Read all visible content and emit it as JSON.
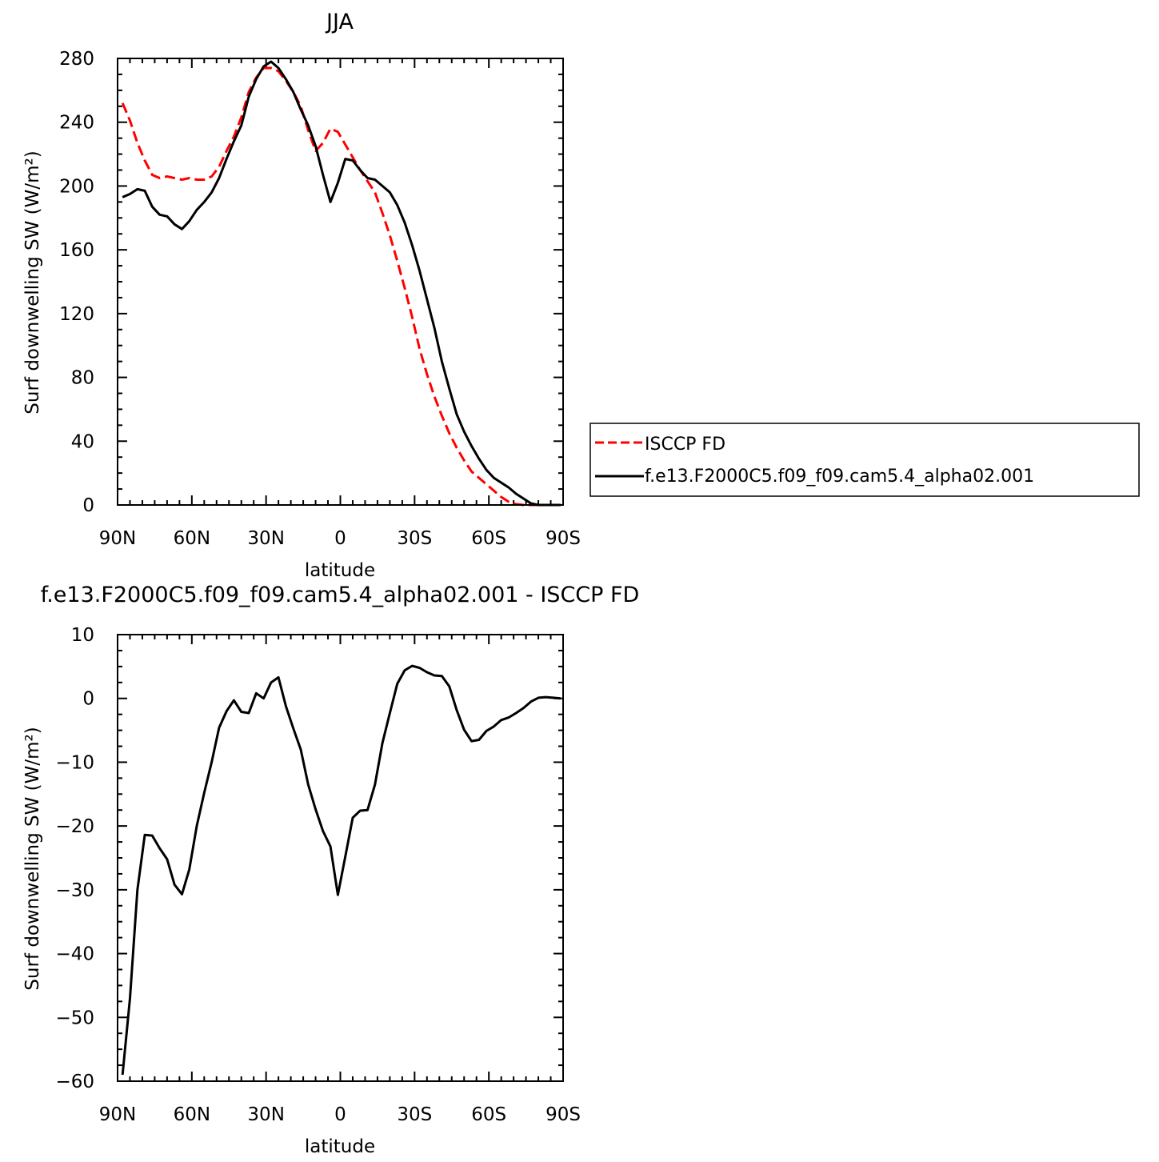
{
  "chart_data": [
    {
      "type": "line",
      "title": "JJA",
      "xlabel": "latitude",
      "ylabel": "Surf downwelling SW (W/m²)",
      "xlim": [
        90,
        -90
      ],
      "ylim": [
        0,
        280
      ],
      "xticks": [
        90,
        60,
        30,
        0,
        -30,
        -60,
        -90
      ],
      "xticklabels": [
        "90N",
        "60N",
        "30N",
        "0",
        "30S",
        "60S",
        "90S"
      ],
      "yticks": [
        0,
        40,
        80,
        120,
        160,
        200,
        240,
        280
      ],
      "yticklabels": [
        "0",
        "40",
        "80",
        "120",
        "160",
        "200",
        "240",
        "280"
      ],
      "legend_position": "right",
      "series": [
        {
          "name": "ISCCP FD",
          "color": "#ff0000",
          "style": "dashed",
          "x": [
            88,
            85,
            82,
            79,
            76,
            73,
            70,
            67,
            64,
            61,
            58,
            55,
            52,
            49,
            46,
            43,
            40,
            37,
            34,
            31,
            28,
            25,
            22,
            19,
            16,
            13,
            10,
            7,
            4,
            1,
            -2,
            -5,
            -8,
            -11,
            -14,
            -17,
            -20,
            -23,
            -26,
            -29,
            -32,
            -35,
            -38,
            -41,
            -44,
            -47,
            -50,
            -53,
            -56,
            -59,
            -62,
            -65,
            -68,
            -71,
            -74,
            -77,
            -80,
            -83,
            -86,
            -89
          ],
          "y": [
            252,
            241,
            227,
            216,
            207,
            205,
            206,
            205,
            204,
            205,
            204,
            204,
            206,
            212,
            222,
            231,
            243,
            259,
            268,
            274,
            274,
            272,
            266,
            259,
            250,
            235,
            222,
            227,
            236,
            234,
            226,
            218,
            210,
            203,
            196,
            183,
            169,
            153,
            136,
            118,
            98,
            82,
            68,
            56,
            45,
            36,
            28,
            21,
            17,
            13,
            9,
            5,
            2,
            0.5,
            0,
            0,
            0,
            0,
            0,
            0
          ]
        },
        {
          "name": "f.e13.F2000C5.f09_f09.cam5.4_alpha02.001",
          "color": "#000000",
          "style": "solid",
          "x": [
            88,
            85,
            82,
            79,
            76,
            73,
            70,
            67,
            64,
            61,
            58,
            55,
            52,
            49,
            46,
            43,
            40,
            37,
            34,
            31,
            28,
            25,
            22,
            19,
            16,
            13,
            10,
            7,
            4,
            1,
            -2,
            -5,
            -8,
            -11,
            -14,
            -17,
            -20,
            -23,
            -26,
            -29,
            -32,
            -35,
            -38,
            -41,
            -44,
            -47,
            -50,
            -53,
            -56,
            -59,
            -62,
            -65,
            -68,
            -71,
            -74,
            -77,
            -80,
            -83,
            -86,
            -89
          ],
          "y": [
            193,
            195,
            198,
            197,
            187,
            182,
            181,
            176,
            173,
            178,
            185,
            190,
            196,
            205,
            217,
            228,
            238,
            256,
            267,
            275,
            278,
            274,
            267,
            259,
            248,
            238,
            225,
            207,
            190,
            202,
            217,
            216,
            210,
            205,
            204,
            200,
            196,
            188,
            177,
            163,
            147,
            129,
            111,
            90,
            73,
            57,
            46,
            37,
            29,
            22,
            17,
            14,
            11,
            7,
            4,
            1,
            0,
            0,
            0,
            0
          ]
        }
      ]
    },
    {
      "type": "line",
      "title": "f.e13.F2000C5.f09_f09.cam5.4_alpha02.001 - ISCCP FD",
      "xlabel": "latitude",
      "ylabel": "Surf downwelling SW (W/m²)",
      "xlim": [
        90,
        -90
      ],
      "ylim": [
        -60,
        10
      ],
      "xticks": [
        90,
        60,
        30,
        0,
        -30,
        -60,
        -90
      ],
      "xticklabels": [
        "90N",
        "60N",
        "30N",
        "0",
        "30S",
        "60S",
        "90S"
      ],
      "yticks": [
        10,
        0,
        -10,
        -20,
        -30,
        -40,
        -50,
        -60
      ],
      "yticklabels": [
        "10",
        "0",
        "−10",
        "−20",
        "−30",
        "−40",
        "−50",
        "−60"
      ],
      "series": [
        {
          "color": "#000000",
          "style": "solid",
          "x": [
            88,
            85,
            82,
            79,
            76,
            73,
            70,
            67,
            64,
            61,
            58,
            55,
            52,
            49,
            46,
            43,
            40,
            37,
            34,
            31,
            28,
            25,
            22,
            19,
            16,
            13,
            10,
            7,
            4,
            1,
            -2,
            -5,
            -8,
            -11,
            -14,
            -17,
            -20,
            -23,
            -26,
            -29,
            -32,
            -35,
            -38,
            -41,
            -44,
            -47,
            -50,
            -53,
            -56,
            -59,
            -62,
            -65,
            -68,
            -71,
            -74,
            -77,
            -80,
            -83,
            -86,
            -89
          ],
          "y": [
            -59,
            -47,
            -30,
            -21.4,
            -21.5,
            -23.5,
            -25.2,
            -29.2,
            -30.7,
            -26.8,
            -20,
            -14.8,
            -10,
            -4.6,
            -2,
            -0.3,
            -2.1,
            -2.3,
            0.8,
            0,
            2.5,
            3.3,
            -1.2,
            -4.7,
            -8,
            -13.5,
            -17.4,
            -20.8,
            -23.2,
            -30.8,
            -24.8,
            -18.7,
            -17.6,
            -17.5,
            -13.5,
            -7,
            -2.3,
            2.3,
            4.4,
            5.1,
            4.8,
            4.1,
            3.6,
            3.5,
            1.9,
            -1.8,
            -4.9,
            -6.7,
            -6.5,
            -5.1,
            -4.4,
            -3.4,
            -3,
            -2.3,
            -1.5,
            -0.5,
            0.1,
            0.2,
            0.1,
            0
          ]
        }
      ]
    }
  ]
}
